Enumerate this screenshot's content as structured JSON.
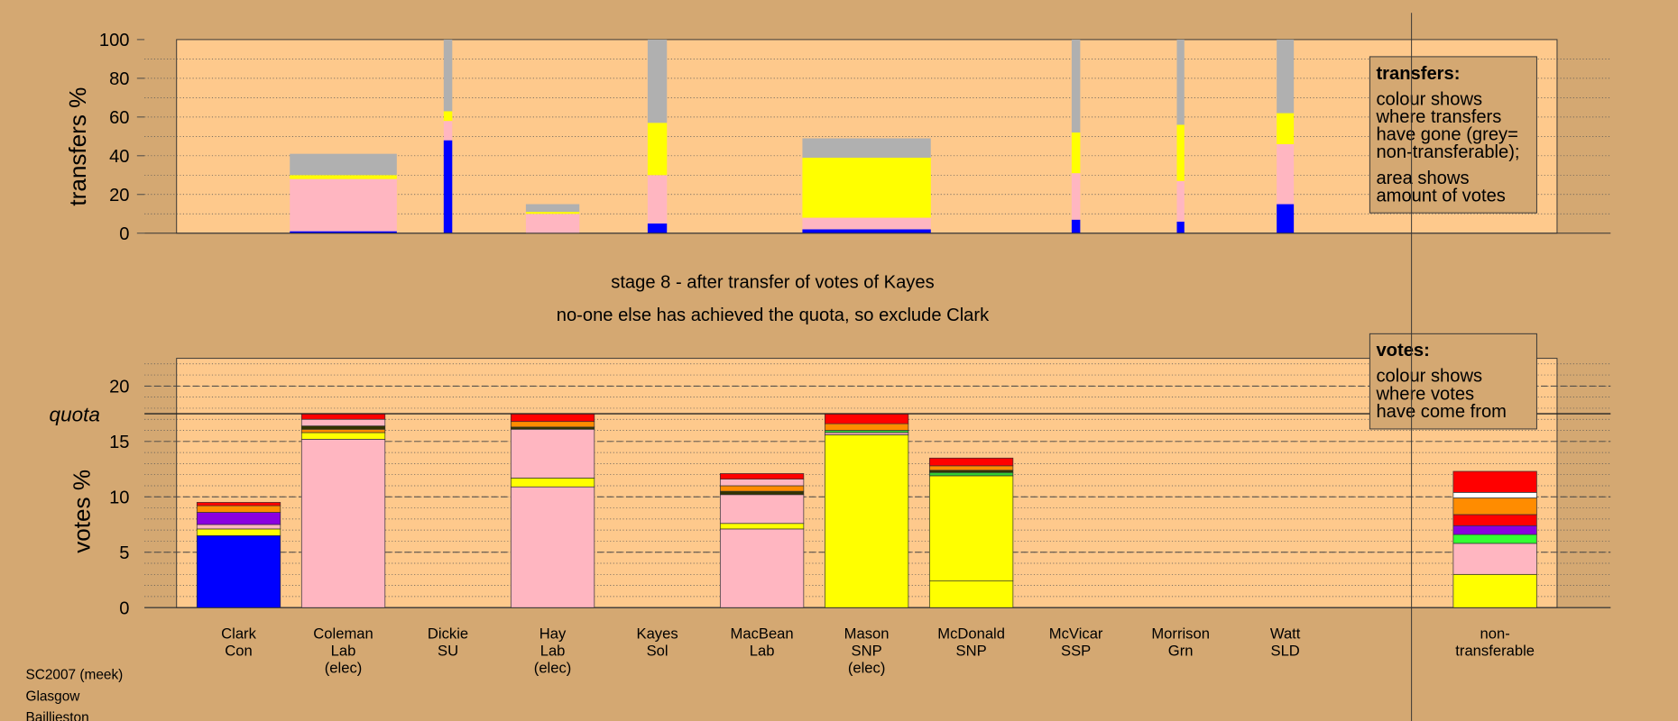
{
  "chart_data": [
    {
      "type": "bar",
      "ylabel": "transfers %",
      "ylim": [
        0,
        100
      ],
      "yticks": [
        0,
        20,
        40,
        60,
        80,
        100
      ],
      "grid": true,
      "minor_grid_step": 10,
      "widths": [
        0,
        100,
        8,
        50,
        18,
        0,
        120,
        0,
        8,
        7,
        16,
        0
      ],
      "series": [
        {
          "color": "#0000ff",
          "values": [
            0,
            1,
            48,
            0,
            5,
            0,
            2,
            0,
            7,
            6,
            15,
            0
          ]
        },
        {
          "color": "#ffb6c1",
          "values": [
            0,
            27,
            10,
            10,
            25,
            0,
            6,
            0,
            24,
            21,
            31,
            0
          ]
        },
        {
          "color": "#ffff00",
          "values": [
            0,
            2,
            5,
            1,
            27,
            0,
            31,
            0,
            21,
            29,
            16,
            0
          ]
        },
        {
          "color": "#b0b0b0",
          "values": [
            0,
            11,
            37,
            4,
            43,
            0,
            10,
            0,
            48,
            44,
            38,
            0
          ]
        }
      ],
      "legend": {
        "title": "transfers:",
        "lines": [
          "colour shows",
          "where transfers",
          "have gone (grey=",
          "non-transferable);"
        ],
        "lines2": [
          "area shows",
          "amount of votes"
        ]
      }
    },
    {
      "type": "stacked-bar",
      "ylabel": "votes %",
      "subtitle": "stage 8 - after transfer of votes of Kayes",
      "title": "no-one else has achieved the quota, so exclude Clark",
      "ylim": [
        0,
        22.5
      ],
      "yticks": [
        0,
        5,
        10,
        15,
        20
      ],
      "grid": true,
      "minor_grid_step": 1,
      "quota": 17.5,
      "quota_label": "quota",
      "categories": [
        [
          "Clark",
          "Con"
        ],
        [
          "Coleman",
          "Lab",
          "(elec)"
        ],
        [
          "Dickie",
          "SU"
        ],
        [
          "Hay",
          "Lab",
          "(elec)"
        ],
        [
          "Kayes",
          "Sol"
        ],
        [
          "MacBean",
          "Lab"
        ],
        [
          "Mason",
          "SNP",
          "(elec)"
        ],
        [
          "McDonald",
          "SNP"
        ],
        [
          "McVicar",
          "SSP"
        ],
        [
          "Morrison",
          "Grn"
        ],
        [
          "Watt",
          "SLD"
        ],
        [
          "non-",
          "transferable"
        ]
      ],
      "stacks": [
        [
          {
            "color": "#0000ff",
            "value": 6.5
          },
          {
            "color": "#ffff00",
            "value": 0.6
          },
          {
            "color": "#ffb6c1",
            "value": 0.4
          },
          {
            "color": "#8a00e0",
            "value": 1.1
          },
          {
            "color": "#ff8c00",
            "value": 0.6
          },
          {
            "color": "#ff0000",
            "value": 0.3
          }
        ],
        [
          {
            "color": "#ffb6c1",
            "value": 15.2
          },
          {
            "color": "#ffff00",
            "value": 0.6
          },
          {
            "color": "#ff8c00",
            "value": 0.3
          },
          {
            "color": "#333300",
            "value": 0.3
          },
          {
            "color": "#ffb6c1",
            "value": 0.6
          },
          {
            "color": "#ff0000",
            "value": 0.5
          }
        ],
        [],
        [
          {
            "color": "#ffb6c1",
            "value": 10.9
          },
          {
            "color": "#ffff00",
            "value": 0.8
          },
          {
            "color": "#ffb6c1",
            "value": 4.4
          },
          {
            "color": "#333300",
            "value": 0.2
          },
          {
            "color": "#ff8c00",
            "value": 0.5
          },
          {
            "color": "#ff0000",
            "value": 0.7
          }
        ],
        [],
        [
          {
            "color": "#ffb6c1",
            "value": 7.1
          },
          {
            "color": "#ffff00",
            "value": 0.5
          },
          {
            "color": "#ffb6c1",
            "value": 2.6
          },
          {
            "color": "#333300",
            "value": 0.3
          },
          {
            "color": "#ff8c00",
            "value": 0.5
          },
          {
            "color": "#ffb6c1",
            "value": 0.6
          },
          {
            "color": "#ff0000",
            "value": 0.5
          }
        ],
        [
          {
            "color": "#ffff00",
            "value": 15.6
          },
          {
            "color": "#ffb6c1",
            "value": 0.2
          },
          {
            "color": "#33cc33",
            "value": 0.2
          },
          {
            "color": "#ff8c00",
            "value": 0.6
          },
          {
            "color": "#ff0000",
            "value": 0.9
          }
        ],
        [
          {
            "color": "#ffff00",
            "value": 2.4
          },
          {
            "color": "#ffff00",
            "value": 9.5
          },
          {
            "color": "#33cc33",
            "value": 0.3
          },
          {
            "color": "#333300",
            "value": 0.2
          },
          {
            "color": "#ff8c00",
            "value": 0.4
          },
          {
            "color": "#ff0000",
            "value": 0.7
          }
        ],
        [],
        [],
        [],
        [
          {
            "color": "#ffff00",
            "value": 3.0
          },
          {
            "color": "#ffb6c1",
            "value": 2.8
          },
          {
            "color": "#33ff33",
            "value": 0.8
          },
          {
            "color": "#8a00e0",
            "value": 0.8
          },
          {
            "color": "#ff0000",
            "value": 1.0
          },
          {
            "color": "#ff8c00",
            "value": 1.5
          },
          {
            "color": "#ffffff",
            "value": 0.5
          },
          {
            "color": "#ff0000",
            "value": 1.9
          }
        ]
      ],
      "legend": {
        "title": "votes:",
        "lines": [
          "colour shows",
          "where votes",
          "have come from"
        ]
      }
    }
  ],
  "footer": [
    "SC2007 (meek)",
    "Glasgow",
    "Baillieston"
  ]
}
